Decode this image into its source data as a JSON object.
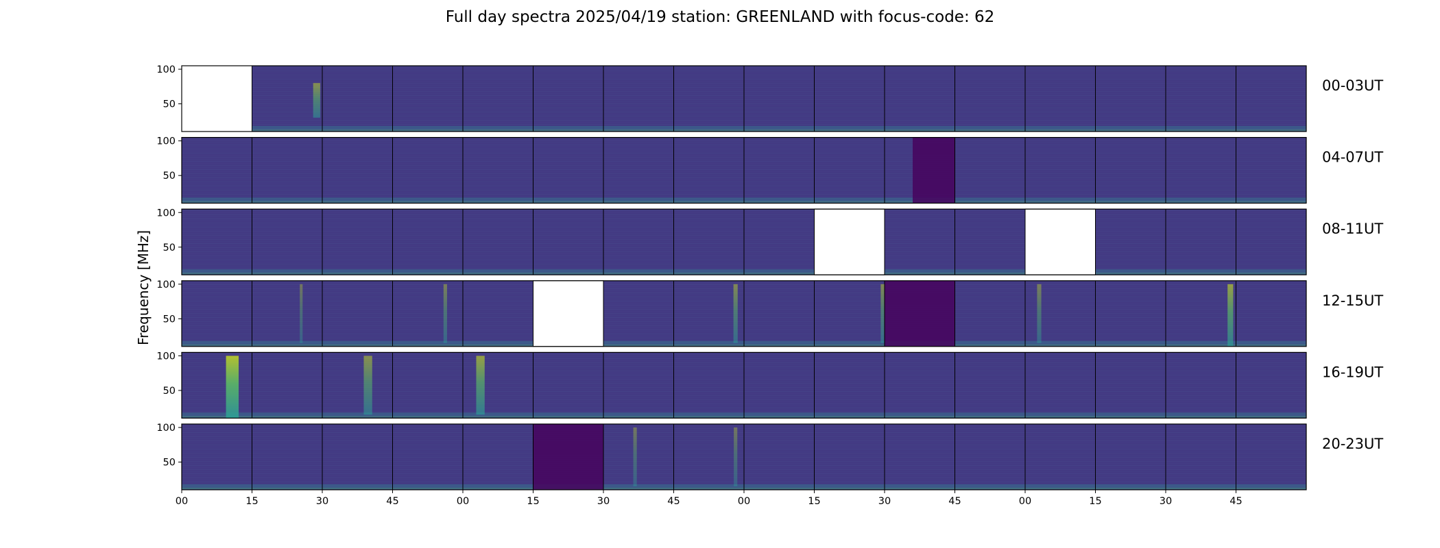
{
  "figure": {
    "title": "Full day spectra 2025/04/19 station: GREENLAND with focus-code: 62",
    "ylabel": "Frequency [MHz]"
  },
  "colors": {
    "background_dark": "#3b1f6e",
    "background_mid": "#433a83",
    "texture": "#4a5a95",
    "emission_teal": "#2aa59a",
    "emission_green": "#5ec962",
    "emission_yellow": "#cde11d",
    "dark_band": "#46045e",
    "missing": "#ffffff",
    "axis": "#000000"
  },
  "chart_data": {
    "type": "heatmap",
    "colormap": "viridis",
    "rows": [
      "00-03UT",
      "04-07UT",
      "08-11UT",
      "12-15UT",
      "16-19UT",
      "20-23UT"
    ],
    "panels_per_row": 16,
    "panel_duration_minutes": 15,
    "x_tick_labels": [
      "00",
      "15",
      "30",
      "45",
      "00",
      "15",
      "30",
      "45",
      "00",
      "15",
      "30",
      "45",
      "00",
      "15",
      "30",
      "45"
    ],
    "y_ticks": [
      50,
      100
    ],
    "y_range_mhz": [
      10,
      105
    ],
    "missing_panels": [
      {
        "row": 0,
        "col": 0
      },
      {
        "row": 2,
        "col": 9
      },
      {
        "row": 2,
        "col": 12
      },
      {
        "row": 3,
        "col": 5
      }
    ],
    "vertical_bursts": [
      {
        "row": 0,
        "col": 1,
        "pos": 0.92,
        "w": 0.1,
        "fmin": 30,
        "fmax": 80,
        "level": 0.5
      },
      {
        "row": 3,
        "col": 1,
        "pos": 0.7,
        "w": 0.04,
        "fmin": 15,
        "fmax": 100,
        "level": 0.35
      },
      {
        "row": 3,
        "col": 3,
        "pos": 0.75,
        "w": 0.05,
        "fmin": 15,
        "fmax": 100,
        "level": 0.4
      },
      {
        "row": 3,
        "col": 7,
        "pos": 0.88,
        "w": 0.06,
        "fmin": 15,
        "fmax": 100,
        "level": 0.45
      },
      {
        "row": 3,
        "col": 9,
        "pos": 0.97,
        "w": 0.05,
        "fmin": 15,
        "fmax": 100,
        "level": 0.45
      },
      {
        "row": 3,
        "col": 12,
        "pos": 0.2,
        "w": 0.06,
        "fmin": 15,
        "fmax": 100,
        "level": 0.4
      },
      {
        "row": 3,
        "col": 14,
        "pos": 0.92,
        "w": 0.08,
        "fmin": 10,
        "fmax": 100,
        "level": 0.6
      },
      {
        "row": 4,
        "col": 0,
        "pos": 0.72,
        "w": 0.18,
        "fmin": 10,
        "fmax": 100,
        "level": 0.8
      },
      {
        "row": 4,
        "col": 2,
        "pos": 0.65,
        "w": 0.12,
        "fmin": 15,
        "fmax": 100,
        "level": 0.5
      },
      {
        "row": 4,
        "col": 4,
        "pos": 0.25,
        "w": 0.12,
        "fmin": 15,
        "fmax": 100,
        "level": 0.6
      },
      {
        "row": 5,
        "col": 6,
        "pos": 0.45,
        "w": 0.05,
        "fmin": 15,
        "fmax": 100,
        "level": 0.35
      },
      {
        "row": 5,
        "col": 7,
        "pos": 0.88,
        "w": 0.05,
        "fmin": 15,
        "fmax": 100,
        "level": 0.35
      }
    ],
    "dark_regions": [
      {
        "row": 1,
        "col": 10,
        "start": 0.4,
        "end": 1.0
      },
      {
        "row": 3,
        "col": 10,
        "start": 0.0,
        "end": 1.0
      },
      {
        "row": 5,
        "col": 5,
        "start": 0.0,
        "end": 1.0
      }
    ]
  }
}
